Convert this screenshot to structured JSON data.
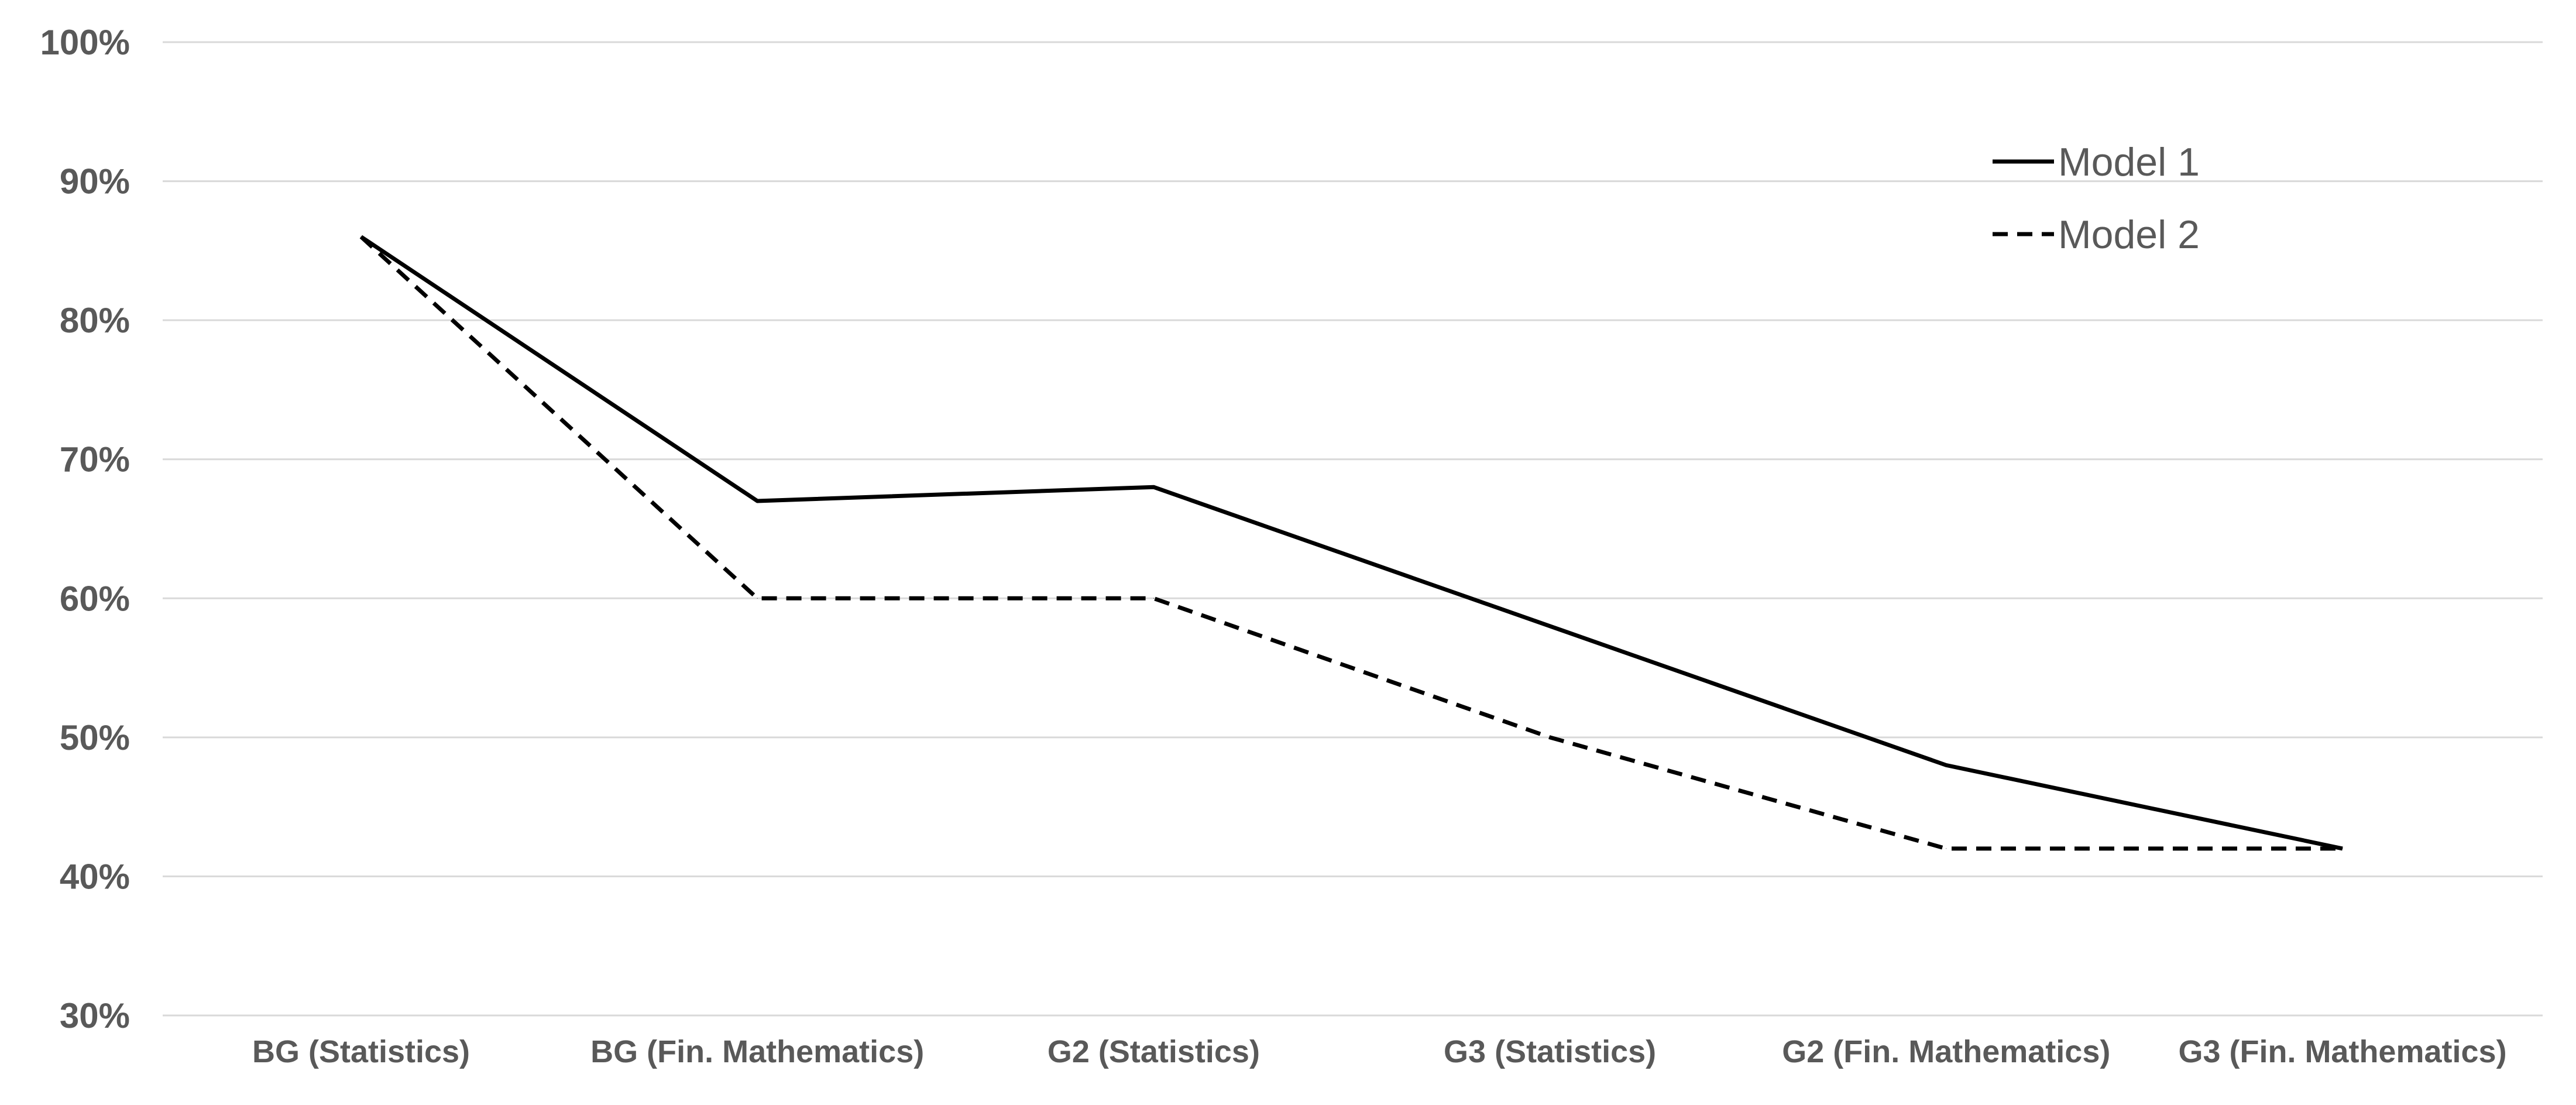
{
  "chart_data": {
    "type": "line",
    "title": "",
    "xlabel": "",
    "ylabel": "",
    "categories": [
      "BG (Statistics)",
      "BG (Fin. Mathematics)",
      "G2 (Statistics)",
      "G3 (Statistics)",
      "G2 (Fin. Mathematics)",
      "G3 (Fin. Mathematics)"
    ],
    "series": [
      {
        "name": "Model 1",
        "style": "solid",
        "color": "#000000",
        "values": [
          86,
          67,
          68,
          58,
          48,
          42
        ]
      },
      {
        "name": "Model  2",
        "style": "dashed",
        "color": "#000000",
        "values": [
          86,
          60,
          60,
          50,
          42,
          42
        ]
      }
    ],
    "ylim": [
      30,
      100
    ],
    "yticks": [
      30,
      40,
      50,
      60,
      70,
      80,
      90,
      100
    ],
    "ytick_labels": [
      "30%",
      "40%",
      "50%",
      "60%",
      "70%",
      "80%",
      "90%",
      "100%"
    ],
    "grid": true,
    "legend_position": "top-right"
  }
}
